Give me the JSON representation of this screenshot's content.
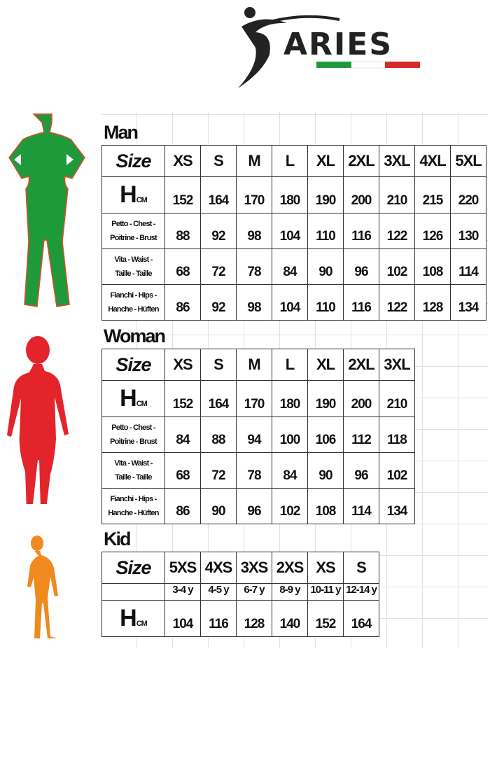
{
  "logo": {
    "text": "ARIES",
    "flag_colors": [
      "#1e9a3c",
      "#ffffff",
      "#d42a2a"
    ]
  },
  "figure_colors": {
    "man": "#1f9a3a",
    "woman": "#e3242b",
    "kid": "#f08a1e"
  },
  "sections": [
    {
      "id": "man",
      "title": "Man",
      "size_label": "Size",
      "sizes": [
        "XS",
        "S",
        "M",
        "L",
        "XL",
        "2XL",
        "3XL",
        "4XL",
        "5XL"
      ],
      "rows": [
        {
          "type": "h",
          "label": "H",
          "unit": "CM",
          "values": [
            "152",
            "164",
            "170",
            "180",
            "190",
            "200",
            "210",
            "215",
            "220"
          ]
        },
        {
          "type": "m",
          "label1": "Petto - Chest -",
          "label2": "Poitrine - Brust",
          "values": [
            "88",
            "92",
            "98",
            "104",
            "110",
            "116",
            "122",
            "126",
            "130"
          ]
        },
        {
          "type": "m",
          "label1": "Vita - Waist -",
          "label2": "Taille - Taille",
          "values": [
            "68",
            "72",
            "78",
            "84",
            "90",
            "96",
            "102",
            "108",
            "114"
          ]
        },
        {
          "type": "m",
          "label1": "Fianchi - Hips -",
          "label2": "Hanche - Hüften",
          "values": [
            "86",
            "92",
            "98",
            "104",
            "110",
            "116",
            "122",
            "128",
            "134"
          ]
        }
      ]
    },
    {
      "id": "woman",
      "title": "Woman",
      "size_label": "Size",
      "sizes": [
        "XS",
        "S",
        "M",
        "L",
        "XL",
        "2XL",
        "3XL"
      ],
      "rows": [
        {
          "type": "h",
          "label": "H",
          "unit": "CM",
          "values": [
            "152",
            "164",
            "170",
            "180",
            "190",
            "200",
            "210"
          ]
        },
        {
          "type": "m",
          "label1": "Petto - Chest -",
          "label2": "Poitrine - Brust",
          "values": [
            "84",
            "88",
            "94",
            "100",
            "106",
            "112",
            "118"
          ]
        },
        {
          "type": "m",
          "label1": "Vita - Waist -",
          "label2": "Taille - Taille",
          "values": [
            "68",
            "72",
            "78",
            "84",
            "90",
            "96",
            "102"
          ]
        },
        {
          "type": "m",
          "label1": "Fianchi - Hips -",
          "label2": "Hanche - Hüften",
          "values": [
            "86",
            "90",
            "96",
            "102",
            "108",
            "114",
            "134"
          ]
        }
      ]
    },
    {
      "id": "kid",
      "title": "Kid",
      "size_label": "Size",
      "sizes": [
        "5XS",
        "4XS",
        "3XS",
        "2XS",
        "XS",
        "S"
      ],
      "rows": [
        {
          "type": "age",
          "values": [
            "3-4 y",
            "4-5 y",
            "6-7 y",
            "8-9 y",
            "10-11 y",
            "12-14 y"
          ]
        },
        {
          "type": "h",
          "label": "H",
          "unit": "CM",
          "values": [
            "104",
            "116",
            "128",
            "140",
            "152",
            "164"
          ]
        }
      ]
    }
  ]
}
